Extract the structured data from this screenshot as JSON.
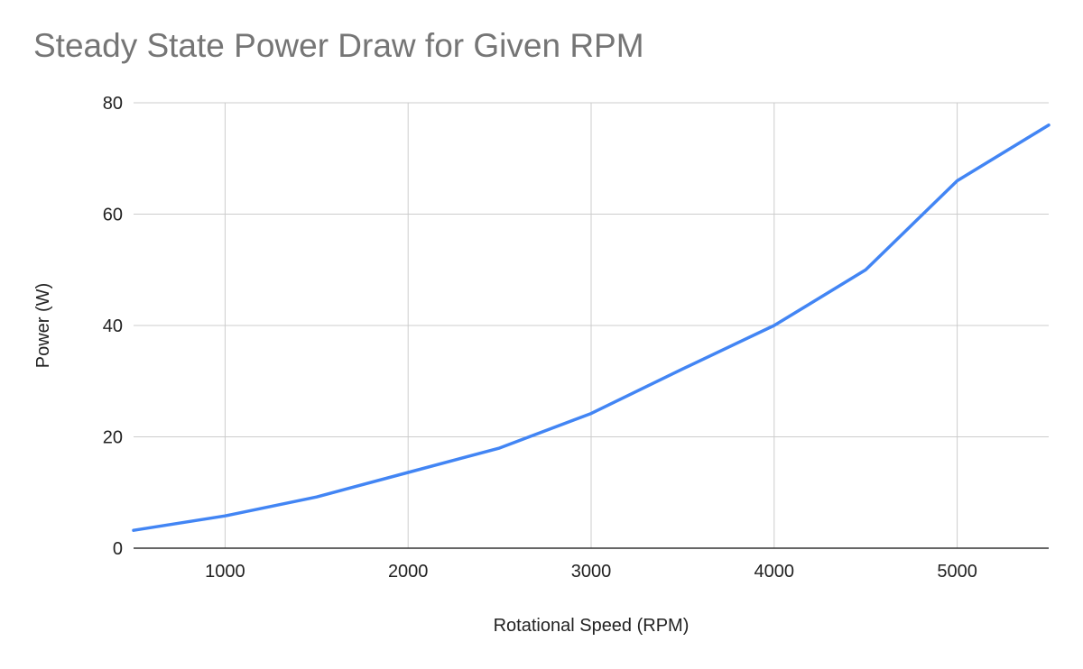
{
  "chart_data": {
    "type": "line",
    "title": "Steady State Power Draw for Given RPM",
    "xlabel": "Rotational Speed (RPM)",
    "ylabel": "Power (W)",
    "xlim": [
      500,
      5500
    ],
    "ylim": [
      0,
      80
    ],
    "x_ticks": [
      1000,
      2000,
      3000,
      4000,
      5000
    ],
    "y_ticks": [
      0,
      20,
      40,
      60,
      80
    ],
    "grid": true,
    "series": [
      {
        "color": "#4285f4",
        "x": [
          500,
          1000,
          1500,
          2000,
          2500,
          3000,
          3500,
          4000,
          4500,
          5000,
          5500
        ],
        "y": [
          3.2,
          5.8,
          9.2,
          13.6,
          18,
          24.2,
          32.2,
          40,
          50,
          66,
          76
        ]
      }
    ]
  }
}
